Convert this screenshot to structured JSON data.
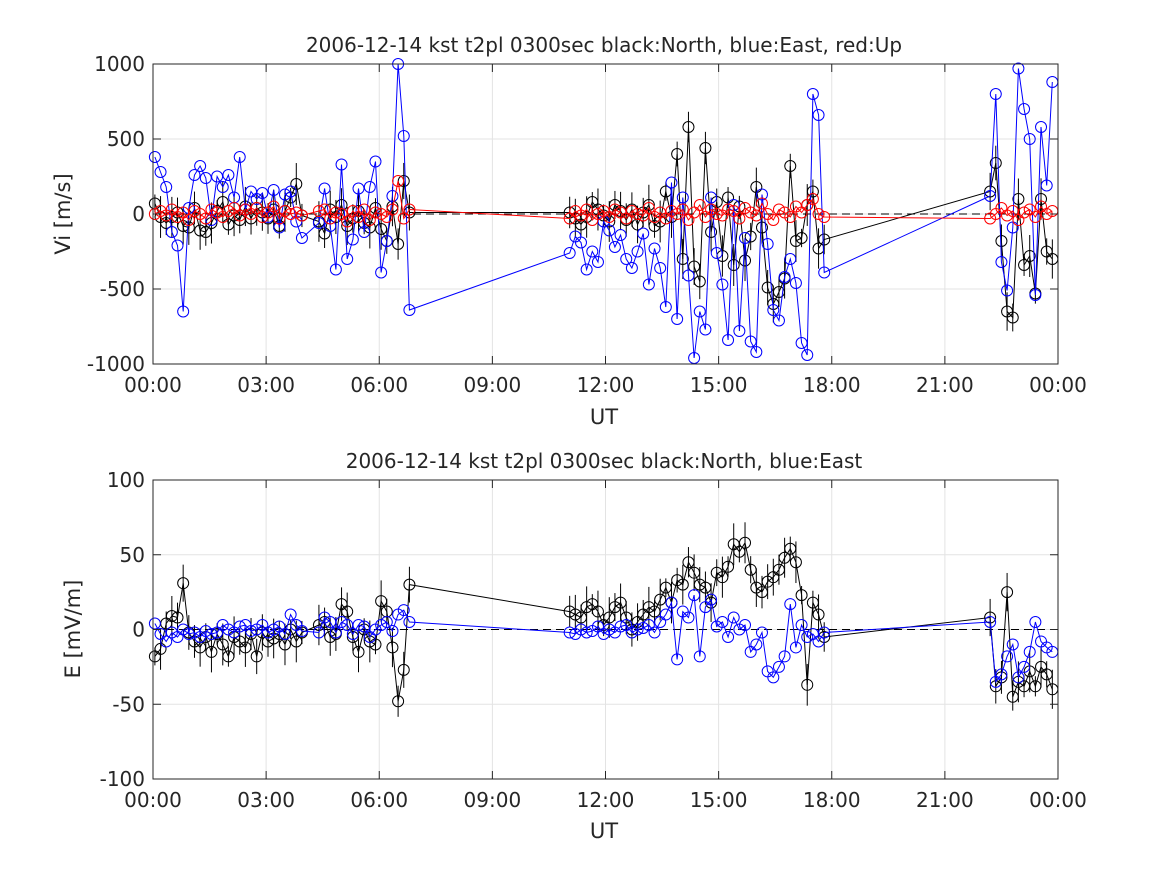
{
  "chart_data": [
    {
      "type": "scatter",
      "title": "2006-12-14 kst t2pl 0300sec black:North, blue:East, red:Up",
      "xlabel": "UT",
      "ylabel": "Vi [m/s]",
      "xlim": [
        "00:00",
        "24:00"
      ],
      "ylim": [
        -1000,
        1000
      ],
      "xticks": [
        "00:00",
        "03:00",
        "06:00",
        "09:00",
        "12:00",
        "15:00",
        "18:00",
        "21:00",
        "00:00"
      ],
      "yticks": [
        "-1000",
        "-500",
        "0",
        "500",
        "1000"
      ],
      "grid": true,
      "zero_line": "dashed",
      "x_hours": [
        0.05,
        0.2,
        0.35,
        0.5,
        0.65,
        0.8,
        0.95,
        1.1,
        1.25,
        1.4,
        1.55,
        1.7,
        1.85,
        2.0,
        2.15,
        2.3,
        2.45,
        2.6,
        2.75,
        2.9,
        3.05,
        3.2,
        3.35,
        3.5,
        3.65,
        3.8,
        3.95,
        4.4,
        4.55,
        4.7,
        4.85,
        5.0,
        5.15,
        5.3,
        5.45,
        5.6,
        5.75,
        5.9,
        6.05,
        6.2,
        6.35,
        6.5,
        6.65,
        6.8,
        11.05,
        11.2,
        11.35,
        11.5,
        11.65,
        11.8,
        11.95,
        12.1,
        12.25,
        12.4,
        12.55,
        12.7,
        12.85,
        13.0,
        13.15,
        13.3,
        13.45,
        13.6,
        13.75,
        13.9,
        14.05,
        14.2,
        14.35,
        14.5,
        14.65,
        14.8,
        14.95,
        15.1,
        15.25,
        15.4,
        15.55,
        15.7,
        15.85,
        16.0,
        16.15,
        16.3,
        16.45,
        16.6,
        16.75,
        16.9,
        17.05,
        17.2,
        17.35,
        17.5,
        17.65,
        17.8,
        22.2,
        22.35,
        22.5,
        22.65,
        22.8,
        22.95,
        23.1,
        23.25,
        23.4,
        23.55,
        23.7,
        23.85
      ],
      "series": [
        {
          "name": "North",
          "color": "#000000",
          "values": [
            70,
            -20,
            -60,
            -20,
            10,
            -80,
            -90,
            40,
            -110,
            -120,
            -60,
            20,
            80,
            -70,
            -10,
            -40,
            50,
            -30,
            40,
            10,
            -30,
            30,
            -80,
            20,
            110,
            200,
            -10,
            -50,
            -130,
            30,
            -20,
            60,
            -80,
            -30,
            20,
            -60,
            -90,
            40,
            -100,
            -180,
            50,
            -200,
            220,
            10,
            10,
            -30,
            -70,
            -20,
            80,
            30,
            -10,
            -50,
            60,
            20,
            -40,
            30,
            -70,
            10,
            60,
            -80,
            -50,
            150,
            -20,
            400,
            -300,
            580,
            -350,
            -450,
            440,
            -120,
            80,
            -280,
            110,
            -340,
            50,
            -310,
            -150,
            180,
            -90,
            -490,
            -600,
            -520,
            -430,
            320,
            -180,
            -160,
            60,
            150,
            -230,
            -170,
            150,
            340,
            -180,
            -650,
            -690,
            100,
            -340,
            -280,
            -530,
            100,
            -250,
            -300
          ]
        },
        {
          "name": "East",
          "color": "#0000ff",
          "values": [
            380,
            280,
            180,
            -120,
            -210,
            -650,
            40,
            260,
            320,
            240,
            -40,
            250,
            180,
            260,
            110,
            380,
            30,
            150,
            100,
            140,
            -20,
            160,
            -90,
            130,
            150,
            -50,
            -160,
            -60,
            170,
            -80,
            -370,
            330,
            -300,
            -170,
            170,
            -120,
            180,
            350,
            -390,
            -180,
            120,
            1000,
            520,
            -640,
            -260,
            -150,
            -190,
            -370,
            -250,
            -320,
            -50,
            -110,
            -220,
            -140,
            -300,
            -360,
            -250,
            -130,
            -470,
            -230,
            -360,
            -620,
            210,
            -700,
            110,
            -410,
            -960,
            -650,
            -770,
            110,
            -260,
            -470,
            -840,
            60,
            -780,
            -160,
            -850,
            -920,
            130,
            -200,
            -640,
            -710,
            -420,
            -300,
            -460,
            -860,
            -940,
            800,
            660,
            -390,
            120,
            800,
            -320,
            -510,
            -90,
            970,
            700,
            500,
            -540,
            580,
            190,
            880
          ]
        },
        {
          "name": "Up",
          "color": "#ff0000",
          "values": [
            0,
            20,
            -10,
            30,
            -20,
            10,
            -40,
            20,
            0,
            -30,
            30,
            10,
            -20,
            20,
            40,
            -10,
            30,
            0,
            40,
            -20,
            10,
            50,
            -30,
            20,
            0,
            10,
            -10,
            20,
            30,
            -30,
            10,
            0,
            -50,
            20,
            -20,
            30,
            -40,
            10,
            0,
            -20,
            30,
            220,
            -30,
            30,
            -30,
            20,
            -10,
            30,
            -40,
            0,
            20,
            -20,
            30,
            10,
            -30,
            20,
            0,
            -10,
            40,
            -20,
            10,
            -30,
            20,
            0,
            30,
            -40,
            10,
            60,
            -20,
            30,
            0,
            -10,
            30,
            20,
            -30,
            40,
            10,
            -10,
            70,
            0,
            -40,
            30,
            10,
            -20,
            50,
            10,
            60,
            100,
            0,
            -20,
            -30,
            0,
            40,
            -10,
            20,
            -40,
            10,
            30,
            -20,
            50,
            0,
            20
          ]
        }
      ]
    },
    {
      "type": "scatter",
      "title": "2006-12-14 kst t2pl 0300sec black:North, blue:East",
      "xlabel": "UT",
      "ylabel": "E [mV/m]",
      "xlim": [
        "00:00",
        "24:00"
      ],
      "ylim": [
        -100,
        100
      ],
      "xticks": [
        "00:00",
        "03:00",
        "06:00",
        "09:00",
        "12:00",
        "15:00",
        "18:00",
        "21:00",
        "00:00"
      ],
      "yticks": [
        "-100",
        "-50",
        "0",
        "50",
        "100"
      ],
      "grid": true,
      "zero_line": "dashed",
      "x_hours": [
        0.05,
        0.2,
        0.35,
        0.5,
        0.65,
        0.8,
        0.95,
        1.1,
        1.25,
        1.4,
        1.55,
        1.7,
        1.85,
        2.0,
        2.15,
        2.3,
        2.45,
        2.6,
        2.75,
        2.9,
        3.05,
        3.2,
        3.35,
        3.5,
        3.65,
        3.8,
        3.95,
        4.4,
        4.55,
        4.7,
        4.85,
        5.0,
        5.15,
        5.3,
        5.45,
        5.6,
        5.75,
        5.9,
        6.05,
        6.2,
        6.35,
        6.5,
        6.65,
        6.8,
        11.05,
        11.2,
        11.35,
        11.5,
        11.65,
        11.8,
        11.95,
        12.1,
        12.25,
        12.4,
        12.55,
        12.7,
        12.85,
        13.0,
        13.15,
        13.3,
        13.45,
        13.6,
        13.75,
        13.9,
        14.05,
        14.2,
        14.35,
        14.5,
        14.65,
        14.8,
        14.95,
        15.1,
        15.25,
        15.4,
        15.55,
        15.7,
        15.85,
        16.0,
        16.15,
        16.3,
        16.45,
        16.6,
        16.75,
        16.9,
        17.05,
        17.2,
        17.35,
        17.5,
        17.65,
        17.8,
        22.2,
        22.35,
        22.5,
        22.65,
        22.8,
        22.95,
        23.1,
        23.25,
        23.4,
        23.55,
        23.7,
        23.85
      ],
      "series": [
        {
          "name": "North",
          "color": "#000000",
          "values": [
            -18,
            -13,
            4,
            9,
            8,
            31,
            -2,
            -8,
            -12,
            -5,
            -15,
            -3,
            -10,
            -18,
            -5,
            -8,
            -12,
            -3,
            -18,
            -2,
            -8,
            -6,
            -3,
            -10,
            0,
            -8,
            -2,
            3,
            5,
            -5,
            -3,
            17,
            12,
            -5,
            -15,
            0,
            -8,
            -10,
            19,
            12,
            -12,
            -48,
            -27,
            30,
            12,
            10,
            8,
            15,
            17,
            12,
            3,
            8,
            15,
            18,
            8,
            0,
            5,
            10,
            15,
            12,
            20,
            28,
            18,
            33,
            30,
            45,
            38,
            30,
            28,
            18,
            38,
            35,
            42,
            57,
            52,
            58,
            40,
            28,
            25,
            32,
            35,
            40,
            48,
            54,
            45,
            23,
            -37,
            18,
            10,
            -5,
            8,
            -38,
            -32,
            25,
            -45,
            -35,
            -38,
            -28,
            -38,
            -25,
            -30,
            -40
          ]
        },
        {
          "name": "East",
          "color": "#0000ff",
          "values": [
            4,
            -3,
            -8,
            -2,
            -5,
            0,
            -3,
            -2,
            -5,
            -1,
            -3,
            -2,
            3,
            0,
            -2,
            2,
            3,
            -1,
            0,
            3,
            -2,
            0,
            2,
            -3,
            10,
            3,
            -1,
            -2,
            8,
            5,
            -2,
            5,
            3,
            -3,
            3,
            2,
            -5,
            0,
            3,
            5,
            -1,
            10,
            13,
            5,
            -2,
            -3,
            0,
            -2,
            -1,
            2,
            -3,
            0,
            -2,
            2,
            3,
            -2,
            0,
            1,
            3,
            -2,
            5,
            10,
            18,
            -20,
            12,
            8,
            23,
            -18,
            15,
            20,
            2,
            5,
            -5,
            8,
            0,
            3,
            -15,
            -10,
            -2,
            -28,
            -32,
            -25,
            -18,
            17,
            -12,
            3,
            -5,
            -3,
            -8,
            -2,
            5,
            -35,
            -30,
            -18,
            -10,
            -32,
            -25,
            -15,
            5,
            -8,
            -12,
            -15
          ]
        }
      ]
    }
  ]
}
